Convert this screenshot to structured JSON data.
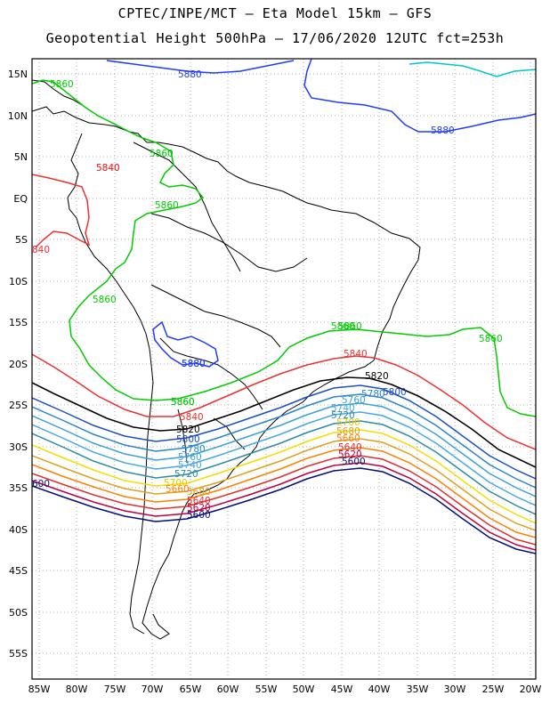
{
  "title_line1": "CPTEC/INPE/MCT –  Eta Model 15km – GFS",
  "title_line2": "Geopotential Height 500hPa – 17/06/2020 12UTC fct=253h",
  "lat_ticks": [
    "15N",
    "10N",
    "5N",
    "EQ",
    "5S",
    "10S",
    "15S",
    "20S",
    "25S",
    "30S",
    "35S",
    "40S",
    "45S",
    "50S",
    "55S"
  ],
  "lon_ticks": [
    "85W",
    "80W",
    "75W",
    "70W",
    "65W",
    "60W",
    "55W",
    "50W",
    "45W",
    "40W",
    "35W",
    "30W",
    "25W",
    "20W"
  ],
  "colors": {
    "c5880": "#1e3cff",
    "c5860": "#00cc00",
    "c5840": "#ee3030",
    "c5820": "#000000",
    "c5800": "#1a4fc8",
    "c5780": "#2a86c8",
    "c5760": "#3aa2d8",
    "c5740": "#4aa8e0",
    "c5720": "#2e8ba0",
    "c5700": "#f0e000",
    "c5680": "#e0a020",
    "c5660": "#ff8000",
    "c5640": "#e03030",
    "c5620": "#c00040",
    "c5600": "#00107a",
    "c5900": "#00c8c8"
  },
  "contour_labels": [
    {
      "text": "5880",
      "color": "#1e3cff"
    },
    {
      "text": "5860",
      "color": "#00cc00"
    },
    {
      "text": "5840",
      "color": "#ee3030"
    },
    {
      "text": "5860",
      "color": "#00cc00"
    },
    {
      "text": "5860",
      "color": "#00cc00"
    },
    {
      "text": "840",
      "color": "#ee3030"
    },
    {
      "text": "5880",
      "color": "#1e3cff"
    },
    {
      "text": "5860",
      "color": "#00cc00"
    },
    {
      "text": "5880",
      "color": "#1e3cff"
    },
    {
      "text": "5860",
      "color": "#00cc00"
    },
    {
      "text": "5860",
      "color": "#00cc00"
    },
    {
      "text": "5860",
      "color": "#00cc00"
    },
    {
      "text": "5840",
      "color": "#ee3030"
    },
    {
      "text": "5820",
      "color": "#000000"
    },
    {
      "text": "5800",
      "color": "#1a4fc8"
    },
    {
      "text": "5780",
      "color": "#2a86c8"
    },
    {
      "text": "5760",
      "color": "#3aa2d8"
    },
    {
      "text": "5740",
      "color": "#4aa8e0"
    },
    {
      "text": "5720",
      "color": "#2e8ba0"
    },
    {
      "text": "5860",
      "color": "#00cc00"
    },
    {
      "text": "5840",
      "color": "#ee3030"
    },
    {
      "text": "5820",
      "color": "#000000"
    },
    {
      "text": "5800",
      "color": "#1a4fc8"
    },
    {
      "text": "5780",
      "color": "#2a86c8"
    },
    {
      "text": "5760",
      "color": "#3aa2d8"
    },
    {
      "text": "5740",
      "color": "#4aa8e0"
    },
    {
      "text": "5720",
      "color": "#2e8ba0"
    },
    {
      "text": "5700",
      "color": "#e0c800"
    },
    {
      "text": "5680",
      "color": "#e0a020"
    },
    {
      "text": "5660",
      "color": "#ff8000"
    },
    {
      "text": "5640",
      "color": "#e03030"
    },
    {
      "text": "5620",
      "color": "#c00040"
    },
    {
      "text": "5600",
      "color": "#00107a"
    },
    {
      "text": "5700",
      "color": "#e0c800"
    },
    {
      "text": "5680",
      "color": "#e0a020"
    },
    {
      "text": "5660",
      "color": "#ff8000"
    },
    {
      "text": "5640",
      "color": "#e03030"
    },
    {
      "text": "5620",
      "color": "#c00040"
    },
    {
      "text": "5600",
      "color": "#00107a"
    },
    {
      "text": "5880",
      "color": "#1e3cff"
    },
    {
      "text": "5840",
      "color": "#ee3030"
    },
    {
      "text": "5860",
      "color": "#00cc00"
    },
    {
      "text": "600",
      "color": "#00107a"
    }
  ]
}
